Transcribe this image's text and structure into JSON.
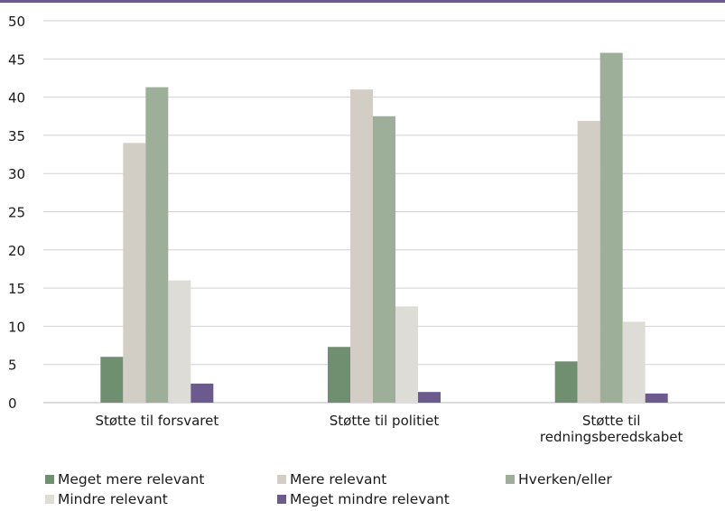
{
  "chart_data": {
    "type": "bar",
    "title": "",
    "xlabel": "",
    "ylabel": "",
    "ylim": [
      0,
      50
    ],
    "yticks": [
      0,
      5,
      10,
      15,
      20,
      25,
      30,
      35,
      40,
      45,
      50
    ],
    "grid": true,
    "legend_position": "bottom",
    "categories": [
      [
        "Støtte til forsvaret"
      ],
      [
        "Støtte til politiet"
      ],
      [
        "Støtte til",
        "redningsberedskabet"
      ]
    ],
    "series": [
      {
        "name": "Meget mere relevant",
        "color": "#6f8f70",
        "values": [
          6.0,
          7.3,
          5.4
        ]
      },
      {
        "name": "Mere relevant",
        "color": "#d3cec5",
        "values": [
          34.0,
          41.0,
          36.9
        ]
      },
      {
        "name": "Hverken/eller",
        "color": "#9dae99",
        "values": [
          41.3,
          37.5,
          45.8
        ]
      },
      {
        "name": "Mindre relevant",
        "color": "#dddcd6",
        "values": [
          16.0,
          12.6,
          10.6
        ]
      },
      {
        "name": "Meget mindre relevant",
        "color": "#6b5a8e",
        "values": [
          2.5,
          1.4,
          1.2
        ]
      }
    ]
  }
}
